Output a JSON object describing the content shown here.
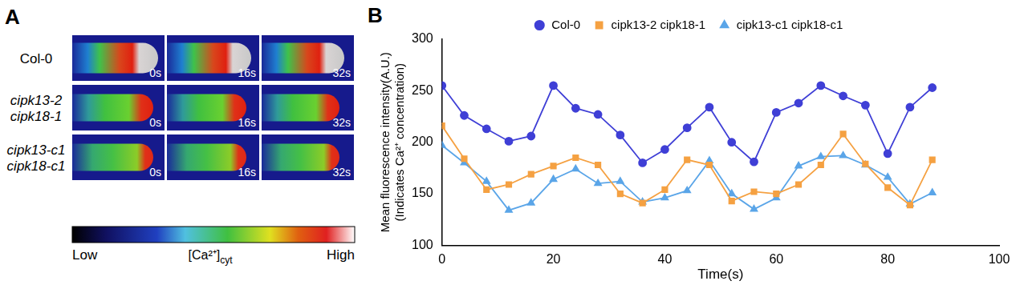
{
  "panel_labels": [
    "A",
    "B"
  ],
  "panel_a": {
    "rows": [
      {
        "label": "Col-0",
        "times": [
          "0s",
          "16s",
          "32s"
        ]
      },
      {
        "label": "cipk13-2 cipk18-1",
        "times": [
          "0s",
          "16s",
          "32s"
        ]
      },
      {
        "label": "cipk13-c1 cipk18-c1",
        "times": [
          "0s",
          "16s",
          "32s"
        ]
      }
    ],
    "colorbar": {
      "low": "Low",
      "title": "[Ca²⁺]",
      "title_sub": "cyt",
      "high": "High"
    }
  },
  "chart_data": {
    "type": "line",
    "x_label": "Time(s)",
    "y_label": [
      "Mean fluorescence intensity(A.U.)",
      "(Indicates Ca²⁺ concentration)"
    ],
    "x": [
      0,
      4,
      8,
      12,
      16,
      20,
      24,
      28,
      32,
      36,
      40,
      44,
      48,
      52,
      56,
      60,
      64,
      68,
      72,
      76,
      80,
      84,
      88
    ],
    "series": [
      {
        "name": "Col-0",
        "color": "#3f3fd6",
        "marker": "circle",
        "values": [
          255,
          226,
          213,
          201,
          206,
          255,
          233,
          227,
          207,
          180,
          193,
          214,
          234,
          200,
          181,
          229,
          238,
          255,
          245,
          236,
          189,
          234,
          253
        ]
      },
      {
        "name": "cipk13-2 cipk18-1",
        "color": "#f5a142",
        "marker": "square",
        "values": [
          216,
          184,
          154,
          159,
          169,
          177,
          185,
          178,
          150,
          141,
          154,
          183,
          178,
          143,
          152,
          150,
          159,
          178,
          208,
          179,
          156,
          139,
          183
        ]
      },
      {
        "name": "cipk13-c1 cipk18-c1",
        "color": "#5aa5e8",
        "marker": "triangle",
        "values": [
          197,
          180,
          162,
          134,
          141,
          164,
          174,
          160,
          162,
          142,
          146,
          153,
          182,
          150,
          135,
          146,
          177,
          186,
          187,
          178,
          166,
          140,
          151
        ]
      }
    ],
    "xlim": [
      0,
      100
    ],
    "xticks": [
      0,
      20,
      40,
      60,
      80,
      100
    ],
    "ylim": [
      100,
      300
    ],
    "yticks": [
      100,
      150,
      200,
      250,
      300
    ],
    "grid": false,
    "legend": "top"
  }
}
